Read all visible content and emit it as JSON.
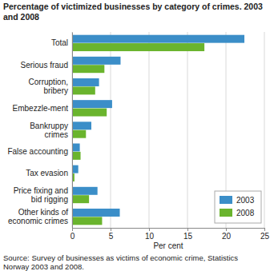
{
  "chart_data": {
    "type": "bar",
    "orientation": "horizontal",
    "title": "Percentage of victimized businesses by category of crimes. 2003 and 2008",
    "x_label": "Per cent",
    "source": "Source: Survey of businesses as victims of economic crime, Statistics Norway 2003 and 2008.",
    "categories": [
      "Total",
      "Serious fraud",
      "Corruption, bribery",
      "Embezzle-ment",
      "Bankruppy crimes",
      "False accounting",
      "Tax evasion",
      "Price fixing and bid rigging",
      "Other kinds of economic crimes"
    ],
    "series": [
      {
        "name": "2003",
        "color": "#3b8ec8",
        "values": [
          22.4,
          6.3,
          3.5,
          5.2,
          2.5,
          1.0,
          0.8,
          3.3,
          6.2
        ]
      },
      {
        "name": "2008",
        "color": "#6ab42d",
        "values": [
          17.2,
          4.2,
          3.0,
          4.5,
          1.8,
          1.1,
          0.3,
          2.2,
          3.9
        ]
      }
    ],
    "xlim": [
      0,
      25
    ],
    "xticks": [
      0,
      5,
      10,
      15,
      20,
      25
    ],
    "grid": true,
    "legend": "lower right"
  }
}
